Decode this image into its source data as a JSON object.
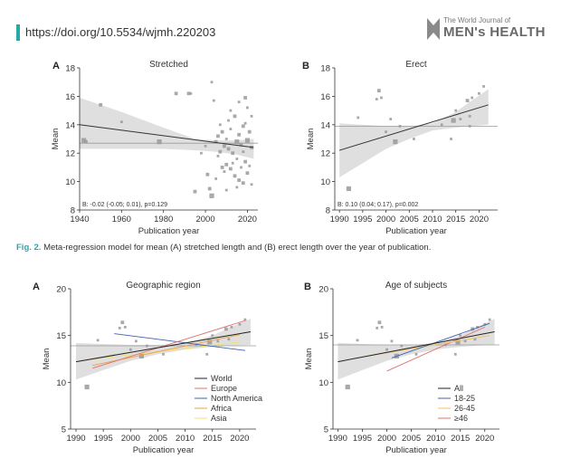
{
  "header": {
    "doi": "https://doi.org/10.5534/wjmh.220203",
    "journal_small": "The World Journal of",
    "journal_big": "MEN's HEALTH"
  },
  "caption": {
    "fig_label": "Fig. 2.",
    "text": "Meta-regression model for mean (A) stretched length and (B) erect length over the year of publication."
  },
  "colors": {
    "accent": "#2aa7a7",
    "band": "#d4d4d4",
    "point": "#9a9a9a",
    "europe": "#e07070",
    "north_america": "#4060b0",
    "africa": "#f0a040",
    "asia": "#f2e070"
  },
  "chart_data": [
    {
      "id": "A",
      "type": "scatter",
      "panel_letter": "A",
      "title": "Stretched",
      "xlabel": "Publication year",
      "ylabel": "Mean",
      "xlim": [
        1940,
        2025
      ],
      "ylim": [
        8,
        18
      ],
      "xticks": [
        1940,
        1960,
        1980,
        2000,
        2020
      ],
      "yticks": [
        8,
        10,
        12,
        14,
        16,
        18
      ],
      "hline": 12.7,
      "annotation": "B: -0.02 (-0.05; 0.01), p=0.129",
      "fit": {
        "x": [
          1940,
          2023
        ],
        "y": [
          14.0,
          12.4
        ]
      },
      "band": {
        "x": [
          1940,
          1960,
          1980,
          1995,
          2005,
          2015,
          2023
        ],
        "upper": [
          15.9,
          14.9,
          13.8,
          13.0,
          12.9,
          12.9,
          13.0
        ],
        "lower": [
          12.3,
          12.3,
          12.3,
          12.2,
          12.1,
          11.9,
          11.6
        ]
      },
      "points": [
        [
          1942,
          12.9,
          3
        ],
        [
          1943,
          12.8,
          2
        ],
        [
          1950,
          15.4,
          2
        ],
        [
          1960,
          14.2,
          1
        ],
        [
          1978,
          12.8,
          3
        ],
        [
          1986,
          16.2,
          2
        ],
        [
          1992,
          16.2,
          2
        ],
        [
          1993,
          16.2,
          1
        ],
        [
          1995,
          9.3,
          2
        ],
        [
          1998,
          12.0,
          1
        ],
        [
          2000,
          12.5,
          1
        ],
        [
          2001,
          10.5,
          2
        ],
        [
          2002,
          9.5,
          2
        ],
        [
          2003,
          9.0,
          3
        ],
        [
          2003,
          17.0,
          1
        ],
        [
          2004,
          15.7,
          1
        ],
        [
          2005,
          12.8,
          2
        ],
        [
          2005,
          10.2,
          1
        ],
        [
          2006,
          13.2,
          2
        ],
        [
          2006,
          11.8,
          1
        ],
        [
          2007,
          14.0,
          1
        ],
        [
          2008,
          13.5,
          2
        ],
        [
          2008,
          11.0,
          2
        ],
        [
          2009,
          12.5,
          2
        ],
        [
          2009,
          10.7,
          1
        ],
        [
          2010,
          13.0,
          1
        ],
        [
          2010,
          11.2,
          2
        ],
        [
          2011,
          12.3,
          2
        ],
        [
          2011,
          14.3,
          1
        ],
        [
          2012,
          10.9,
          2
        ],
        [
          2012,
          13.7,
          1
        ],
        [
          2013,
          12.0,
          2
        ],
        [
          2013,
          11.3,
          1
        ],
        [
          2014,
          14.6,
          2
        ],
        [
          2014,
          10.4,
          2
        ],
        [
          2015,
          12.8,
          3
        ],
        [
          2015,
          11.6,
          1
        ],
        [
          2016,
          13.3,
          2
        ],
        [
          2016,
          10.1,
          2
        ],
        [
          2016,
          15.6,
          1
        ],
        [
          2017,
          12.6,
          2
        ],
        [
          2017,
          11.0,
          1
        ],
        [
          2018,
          13.9,
          2
        ],
        [
          2018,
          9.9,
          2
        ],
        [
          2018,
          12.1,
          1
        ],
        [
          2019,
          15.9,
          2
        ],
        [
          2019,
          11.4,
          2
        ],
        [
          2019,
          14.1,
          1
        ],
        [
          2020,
          12.9,
          3
        ],
        [
          2020,
          10.6,
          2
        ],
        [
          2020,
          15.2,
          1
        ],
        [
          2021,
          13.5,
          2
        ],
        [
          2021,
          11.1,
          1
        ],
        [
          2022,
          12.4,
          2
        ],
        [
          2022,
          14.6,
          1
        ],
        [
          2022,
          9.8,
          1
        ],
        [
          2015,
          9.6,
          1
        ],
        [
          2010,
          9.4,
          1
        ],
        [
          2012,
          15.0,
          1
        ],
        [
          2007,
          12.1,
          2
        ]
      ]
    },
    {
      "id": "B",
      "type": "scatter",
      "panel_letter": "B",
      "title": "Erect",
      "xlabel": "Publication year",
      "ylabel": "Mean",
      "xlim": [
        1989,
        2024
      ],
      "ylim": [
        8,
        18
      ],
      "xticks": [
        1990,
        1995,
        2000,
        2005,
        2010,
        2015,
        2020
      ],
      "yticks": [
        8,
        10,
        12,
        14,
        16,
        18
      ],
      "hline": 13.9,
      "annotation": "B: 0.10 (0.04; 0.17), p=0.002",
      "fit": {
        "x": [
          1990,
          2022
        ],
        "y": [
          12.2,
          15.4
        ]
      },
      "band": {
        "x": [
          1990,
          1995,
          2000,
          2005,
          2010,
          2015,
          2018,
          2022
        ],
        "upper": [
          14.1,
          14.0,
          13.9,
          13.9,
          14.1,
          14.9,
          15.6,
          16.5
        ],
        "lower": [
          10.3,
          11.3,
          12.3,
          13.0,
          13.6,
          13.8,
          13.9,
          14.0
        ]
      },
      "points": [
        [
          1992,
          9.5,
          3
        ],
        [
          1994,
          14.5,
          1
        ],
        [
          1998,
          15.8,
          1
        ],
        [
          1998.5,
          16.4,
          2
        ],
        [
          1999,
          15.9,
          1
        ],
        [
          2000,
          13.5,
          1
        ],
        [
          2001,
          14.4,
          1
        ],
        [
          2002,
          12.8,
          3
        ],
        [
          2003,
          13.9,
          1
        ],
        [
          2006,
          13.0,
          1
        ],
        [
          2012,
          14.0,
          1
        ],
        [
          2014,
          13.0,
          1
        ],
        [
          2014.5,
          14.3,
          3
        ],
        [
          2015,
          15.0,
          1
        ],
        [
          2016,
          14.4,
          1
        ],
        [
          2017.5,
          15.7,
          2
        ],
        [
          2018,
          14.6,
          1
        ],
        [
          2018.5,
          15.9,
          1
        ],
        [
          2020,
          16.2,
          1
        ],
        [
          2021,
          16.7,
          1
        ],
        [
          2018,
          13.9,
          1
        ]
      ]
    },
    {
      "id": "C",
      "type": "scatter",
      "panel_letter": "A",
      "title": "Geographic region",
      "xlabel": "Publication year",
      "ylabel": "Mean",
      "xlim": [
        1989,
        2023
      ],
      "ylim": [
        5,
        20
      ],
      "xticks": [
        1990,
        1995,
        2000,
        2005,
        2010,
        2015,
        2020
      ],
      "yticks": [
        5,
        10,
        15,
        20
      ],
      "hline": 13.9,
      "fit": {
        "x": [
          1990,
          2022
        ],
        "y": [
          12.2,
          15.4
        ]
      },
      "band": {
        "x": [
          1990,
          1995,
          2000,
          2005,
          2010,
          2015,
          2018,
          2022
        ],
        "upper": [
          14.2,
          14.1,
          14.0,
          14.0,
          14.2,
          15.0,
          15.8,
          16.8
        ],
        "lower": [
          10.3,
          11.3,
          12.3,
          13.0,
          13.5,
          13.8,
          13.9,
          14.0
        ]
      },
      "series": [
        {
          "name": "World",
          "color": "#222222",
          "x": [
            1990,
            2022
          ],
          "y": [
            12.2,
            15.4
          ]
        },
        {
          "name": "Europe",
          "color": "#e07070",
          "x": [
            1993,
            2021
          ],
          "y": [
            11.5,
            16.6
          ]
        },
        {
          "name": "North America",
          "color": "#4060b0",
          "x": [
            1997,
            2021
          ],
          "y": [
            15.2,
            13.4
          ]
        },
        {
          "name": "Africa",
          "color": "#f0a040",
          "x": [
            1993,
            2020
          ],
          "y": [
            11.8,
            15.1
          ]
        },
        {
          "name": "Asia",
          "color": "#f2e070",
          "x": [
            1992,
            2020
          ],
          "y": [
            12.4,
            14.3
          ]
        }
      ],
      "points": [
        [
          1992,
          9.5,
          3
        ],
        [
          1994,
          14.5,
          1
        ],
        [
          1998,
          15.8,
          1
        ],
        [
          1998.5,
          16.4,
          2
        ],
        [
          1999,
          15.9,
          1
        ],
        [
          2000,
          13.5,
          1
        ],
        [
          2001,
          14.4,
          1
        ],
        [
          2002,
          12.8,
          3
        ],
        [
          2003,
          13.9,
          1
        ],
        [
          2006,
          13.0,
          1
        ],
        [
          2012,
          14.0,
          1
        ],
        [
          2014,
          13.0,
          1
        ],
        [
          2014.5,
          14.3,
          3
        ],
        [
          2015,
          15.0,
          1
        ],
        [
          2016,
          14.4,
          1
        ],
        [
          2017.5,
          15.7,
          2
        ],
        [
          2018,
          14.6,
          1
        ],
        [
          2018.5,
          15.9,
          1
        ],
        [
          2020,
          16.2,
          1
        ],
        [
          2021,
          16.7,
          1
        ]
      ],
      "legend_position": "bottom-right"
    },
    {
      "id": "D",
      "type": "scatter",
      "panel_letter": "B",
      "title": "Age of subjects",
      "xlabel": "Publication year",
      "ylabel": "Mean",
      "xlim": [
        1989,
        2023
      ],
      "ylim": [
        5,
        20
      ],
      "xticks": [
        1990,
        1995,
        2000,
        2005,
        2010,
        2015,
        2020
      ],
      "yticks": [
        5,
        10,
        15,
        20
      ],
      "hline": 14.0,
      "fit": {
        "x": [
          1990,
          2022
        ],
        "y": [
          12.2,
          15.4
        ]
      },
      "band": {
        "x": [
          1990,
          1995,
          2000,
          2005,
          2010,
          2015,
          2018,
          2022
        ],
        "upper": [
          14.2,
          14.1,
          14.0,
          14.0,
          14.2,
          15.0,
          15.8,
          16.8
        ],
        "lower": [
          10.3,
          11.3,
          12.3,
          13.0,
          13.5,
          13.8,
          13.9,
          14.0
        ]
      },
      "series": [
        {
          "name": "All",
          "color": "#222222",
          "x": [
            1990,
            2022
          ],
          "y": [
            12.2,
            15.4
          ]
        },
        {
          "name": "18-25",
          "color": "#4060b0",
          "x": [
            2001,
            2021
          ],
          "y": [
            12.6,
            16.3
          ]
        },
        {
          "name": "26-45",
          "color": "#f0c060",
          "x": [
            1996,
            2021
          ],
          "y": [
            12.8,
            15.0
          ]
        },
        {
          "name": "≥46",
          "color": "#e07070",
          "x": [
            2000,
            2020
          ],
          "y": [
            11.2,
            15.9
          ]
        }
      ],
      "points": [
        [
          1992,
          9.5,
          3
        ],
        [
          1994,
          14.5,
          1
        ],
        [
          1998,
          15.8,
          1
        ],
        [
          1998.5,
          16.4,
          2
        ],
        [
          1999,
          15.9,
          1
        ],
        [
          2000,
          13.5,
          1
        ],
        [
          2001,
          14.4,
          1
        ],
        [
          2002,
          12.8,
          3
        ],
        [
          2003,
          13.9,
          1
        ],
        [
          2006,
          13.0,
          1
        ],
        [
          2012,
          14.0,
          1
        ],
        [
          2014,
          13.0,
          1
        ],
        [
          2014.5,
          14.3,
          3
        ],
        [
          2015,
          15.0,
          1
        ],
        [
          2016,
          14.4,
          1
        ],
        [
          2017.5,
          15.7,
          2
        ],
        [
          2018,
          14.6,
          1
        ],
        [
          2018.5,
          15.9,
          1
        ],
        [
          2020,
          16.2,
          1
        ],
        [
          2021,
          16.7,
          1
        ]
      ],
      "legend_position": "bottom-right"
    }
  ]
}
